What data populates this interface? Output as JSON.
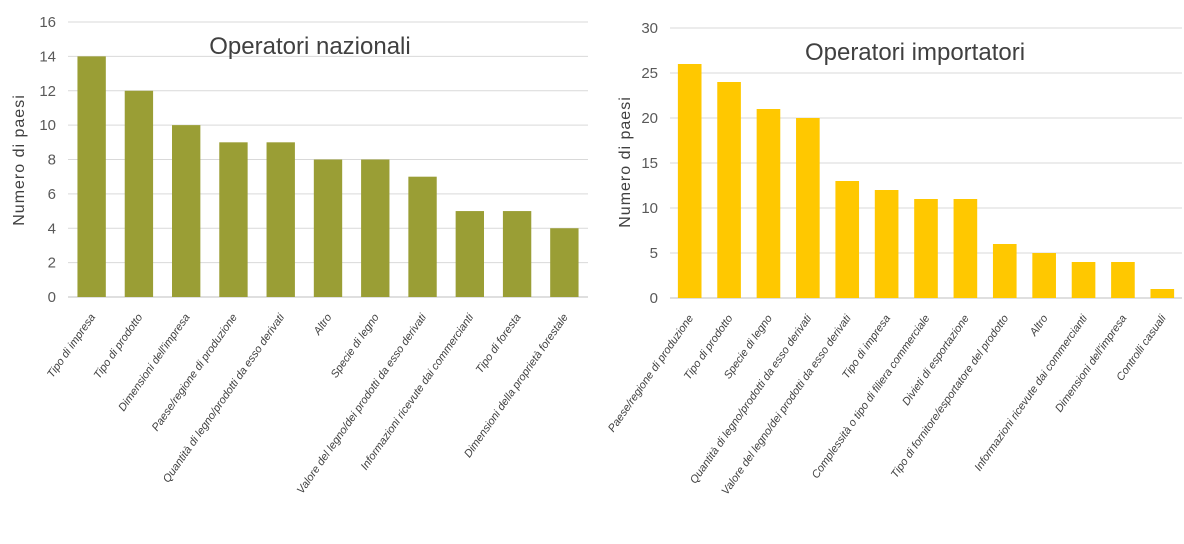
{
  "chart_data": [
    {
      "type": "bar",
      "title": "Operatori nazionali",
      "ylabel": "Numero di paesi",
      "xlabel": "",
      "ylim": [
        0,
        16
      ],
      "yticks": [
        0,
        2,
        4,
        6,
        8,
        10,
        12,
        14,
        16
      ],
      "grid": true,
      "color": "#9a9e35",
      "categories": [
        "Tipo di impresa",
        "Tipo di prodotto",
        "Dimensioni dell'impresa",
        "Paese/regione di produzione",
        "Quantità di legno/prodotti da esso derivati",
        "Altro",
        "Specie di legno",
        "Valore del legno/dei prodotti da esso derivati",
        "Informazioni ricevute dai commercianti",
        "Tipo di foresta",
        "Dimensioni della proprietà forestale"
      ],
      "values": [
        14,
        12,
        10,
        9,
        9,
        8,
        8,
        7,
        5,
        5,
        4
      ]
    },
    {
      "type": "bar",
      "title": "Operatori importatori",
      "ylabel": "Numero di paesi",
      "xlabel": "",
      "ylim": [
        0,
        30
      ],
      "yticks": [
        0,
        5,
        10,
        15,
        20,
        25,
        30
      ],
      "grid": true,
      "color": "#ffc800",
      "categories": [
        "Paese/regione di produzione",
        "Tipo di prodotto",
        "Specie di legno",
        "Quantità di legno/prodotti da esso derivati",
        "Valore del legno/dei prodotti da esso derivati",
        "Tipo di impresa",
        "Complessità o tipo di filiera commerciale",
        "Divieti di esportazione",
        "Tipo di fornitore/esportatore del prodotto",
        "Altro",
        "Informazioni ricevute dai commercianti",
        "Dimensioni dell'impresa",
        "Controlli casuali"
      ],
      "values": [
        26,
        24,
        21,
        20,
        13,
        12,
        11,
        11,
        6,
        5,
        4,
        4,
        1
      ]
    }
  ]
}
